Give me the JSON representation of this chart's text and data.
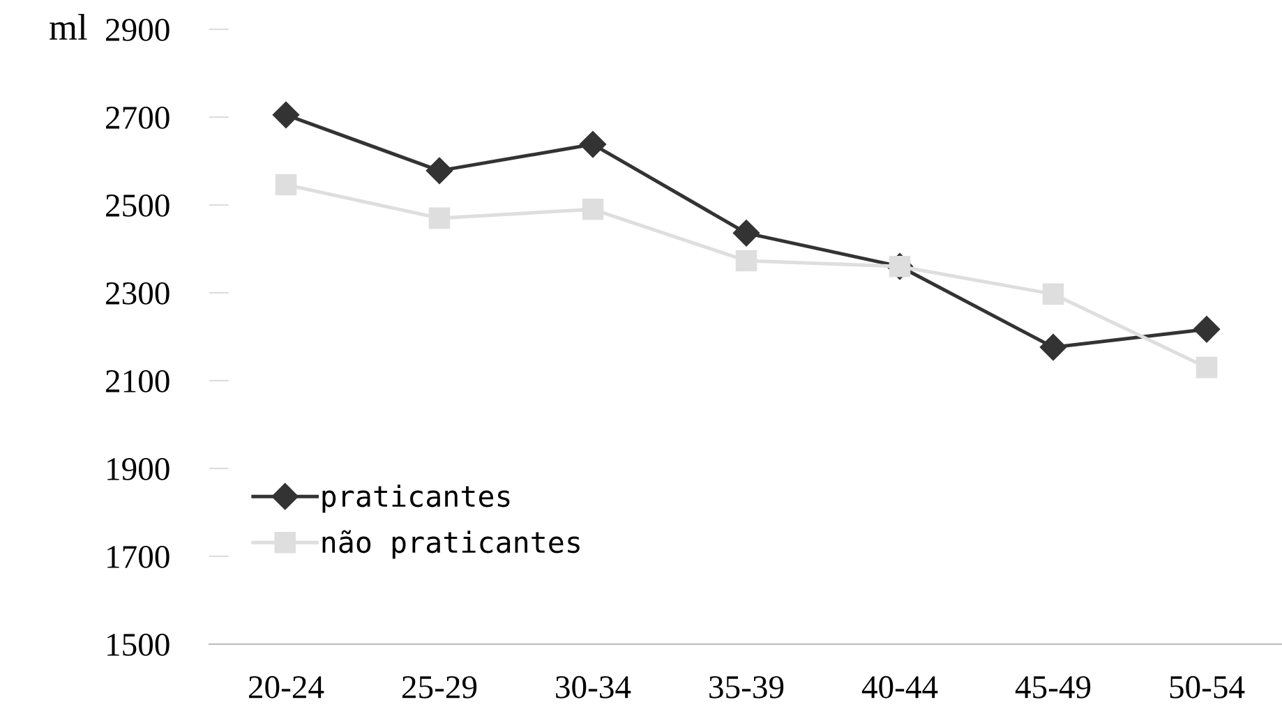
{
  "chart_data": {
    "type": "line",
    "ylabel": "ml",
    "categories": [
      "20-24",
      "25-29",
      "30-34",
      "35-39",
      "40-44",
      "45-49",
      "50-54"
    ],
    "series": [
      {
        "name": "praticantes",
        "color": "#333333",
        "marker": "diamond",
        "values": [
          2705,
          2578,
          2638,
          2436,
          2360,
          2176,
          2217
        ]
      },
      {
        "name": "não praticantes",
        "color": "#dedede",
        "marker": "square",
        "values": [
          2546,
          2470,
          2490,
          2373,
          2360,
          2297,
          2130
        ]
      }
    ],
    "ylim": [
      1500,
      2900
    ],
    "yticks": [
      1500,
      1700,
      1900,
      2100,
      2300,
      2500,
      2700,
      2900
    ],
    "grid": false,
    "legend": "bottom left",
    "line_style": "solid"
  }
}
